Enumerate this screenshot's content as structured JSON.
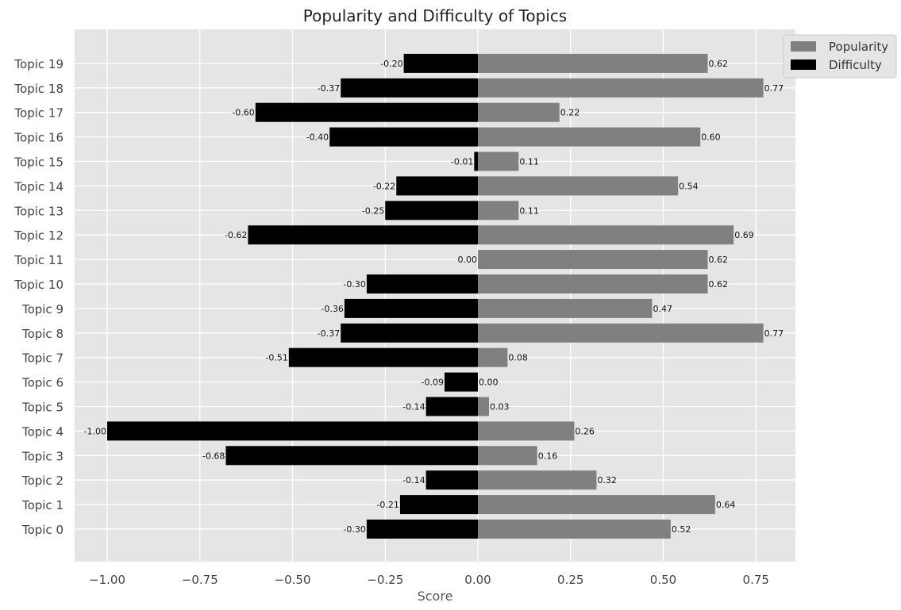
{
  "chart_data": {
    "type": "bar",
    "orientation": "horizontal",
    "title": "Popularity and Difficulty of Topics",
    "xlabel": "Score",
    "ylabel": "",
    "xlim": [
      -1.1,
      0.85
    ],
    "xticks": [
      -1.0,
      -0.75,
      -0.5,
      -0.25,
      0.0,
      0.25,
      0.5,
      0.75
    ],
    "xtick_labels": [
      "−1.00",
      "−0.75",
      "−0.50",
      "−0.25",
      "0.00",
      "0.25",
      "0.50",
      "0.75"
    ],
    "grid": true,
    "legend_position": "top-right",
    "categories": [
      "Topic 0",
      "Topic 1",
      "Topic 2",
      "Topic 3",
      "Topic 4",
      "Topic 5",
      "Topic 6",
      "Topic 7",
      "Topic 8",
      "Topic 9",
      "Topic 10",
      "Topic 11",
      "Topic 12",
      "Topic 13",
      "Topic 14",
      "Topic 15",
      "Topic 16",
      "Topic 17",
      "Topic 18",
      "Topic 19"
    ],
    "series": [
      {
        "name": "Popularity",
        "color": "#808080",
        "values": [
          0.52,
          0.64,
          0.32,
          0.16,
          0.26,
          0.03,
          0.0,
          0.08,
          0.77,
          0.47,
          0.62,
          0.62,
          0.69,
          0.11,
          0.54,
          0.11,
          0.6,
          0.22,
          0.77,
          0.62
        ],
        "labels": [
          "0.52",
          "0.64",
          "0.32",
          "0.16",
          "0.26",
          "0.03",
          "0.00",
          "0.08",
          "0.77",
          "0.47",
          "0.62",
          "0.62",
          "0.69",
          "0.11",
          "0.54",
          "0.11",
          "0.60",
          "0.22",
          "0.77",
          "0.62"
        ]
      },
      {
        "name": "Difficulty",
        "color": "#000000",
        "values": [
          -0.3,
          -0.21,
          -0.14,
          -0.68,
          -1.0,
          -0.14,
          -0.09,
          -0.51,
          -0.37,
          -0.36,
          -0.3,
          0.0,
          -0.62,
          -0.25,
          -0.22,
          -0.01,
          -0.4,
          -0.6,
          -0.37,
          -0.2
        ],
        "labels": [
          "-0.30",
          "-0.21",
          "-0.14",
          "-0.68",
          "-1.00",
          "-0.14",
          "-0.09",
          "-0.51",
          "-0.37",
          "-0.36",
          "-0.30",
          "0.00",
          "-0.62",
          "-0.25",
          "-0.22",
          "-0.01",
          "-0.40",
          "-0.60",
          "-0.37",
          "-0.20"
        ]
      }
    ],
    "colors": {
      "plot_background": "#e5e5e5",
      "grid": "#ffffff",
      "text": "#333333"
    }
  }
}
